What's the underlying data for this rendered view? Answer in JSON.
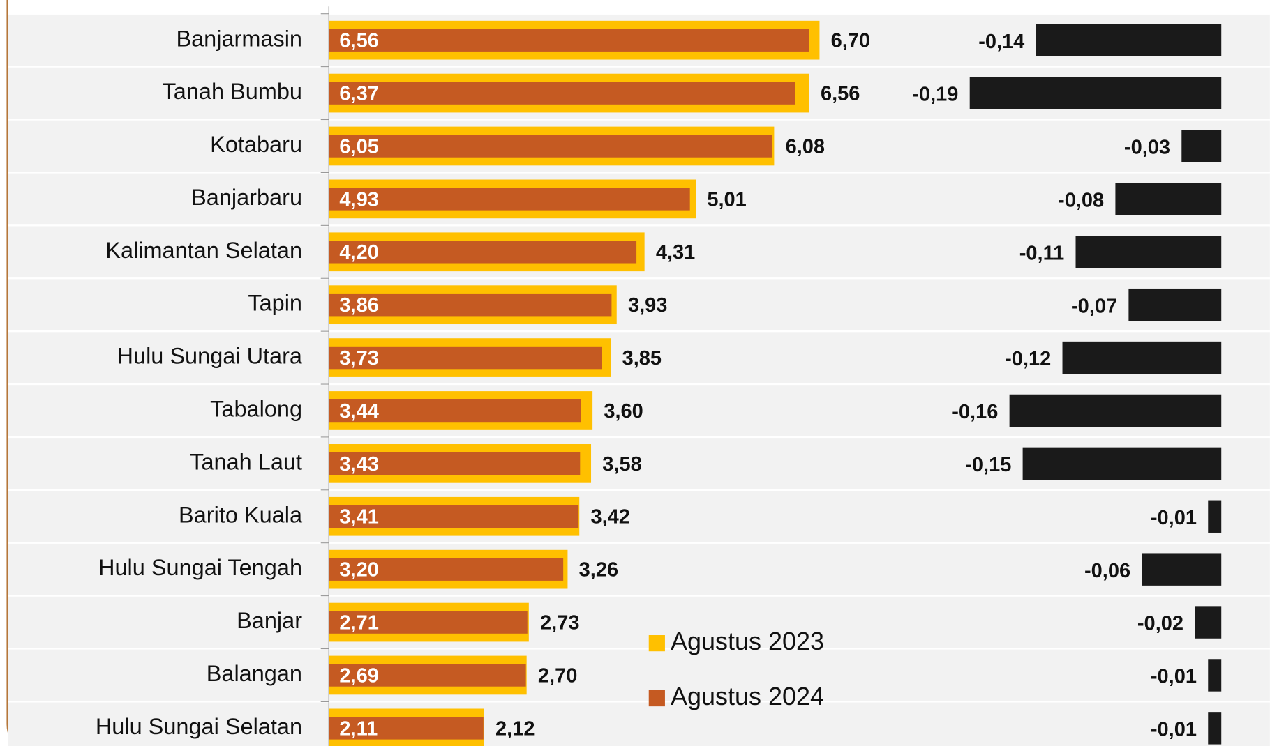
{
  "chart_data": {
    "type": "bar",
    "orientation": "horizontal",
    "categories": [
      "Banjarmasin",
      "Tanah Bumbu",
      "Kotabaru",
      "Banjarbaru",
      "Kalimantan Selatan",
      "Tapin",
      "Hulu Sungai Utara",
      "Tabalong",
      "Tanah Laut",
      "Barito Kuala",
      "Hulu Sungai Tengah",
      "Banjar",
      "Balangan",
      "Hulu Sungai Selatan"
    ],
    "series": [
      {
        "name": "Agustus 2023",
        "color": "#ffc000",
        "values": [
          6.7,
          6.56,
          6.08,
          5.01,
          4.31,
          3.93,
          3.85,
          3.6,
          3.58,
          3.42,
          3.26,
          2.73,
          2.7,
          2.12
        ],
        "value_labels": [
          "6,70",
          "6,56",
          "6,08",
          "5,01",
          "4,31",
          "3,93",
          "3,85",
          "3,60",
          "3,58",
          "3,42",
          "3,26",
          "2,73",
          "2,70",
          "2,12"
        ]
      },
      {
        "name": "Agustus 2024",
        "color": "#c55a22",
        "values": [
          6.56,
          6.37,
          6.05,
          4.93,
          4.2,
          3.86,
          3.73,
          3.44,
          3.43,
          3.41,
          3.2,
          2.71,
          2.69,
          2.11
        ],
        "value_labels": [
          "6,56",
          "6,37",
          "6,05",
          "4,93",
          "4,20",
          "3,86",
          "3,73",
          "3,44",
          "3,43",
          "3,41",
          "3,20",
          "2,71",
          "2,69",
          "2,11"
        ]
      }
    ],
    "changes": {
      "color": "#1a1a1a",
      "values": [
        -0.14,
        -0.19,
        -0.03,
        -0.08,
        -0.11,
        -0.07,
        -0.12,
        -0.16,
        -0.15,
        -0.01,
        -0.06,
        -0.02,
        -0.01,
        -0.01
      ],
      "value_labels": [
        "-0,14",
        "-0,19",
        "-0,03",
        "-0,08",
        "-0,11",
        "-0,07",
        "-0,12",
        "-0,16",
        "-0,15",
        "-0,01",
        "-0,06",
        "-0,02",
        "-0,01",
        "-0,01"
      ]
    },
    "xlim": [
      0,
      7
    ],
    "change_lim": [
      -0.2,
      0
    ],
    "legend": "lower center"
  }
}
